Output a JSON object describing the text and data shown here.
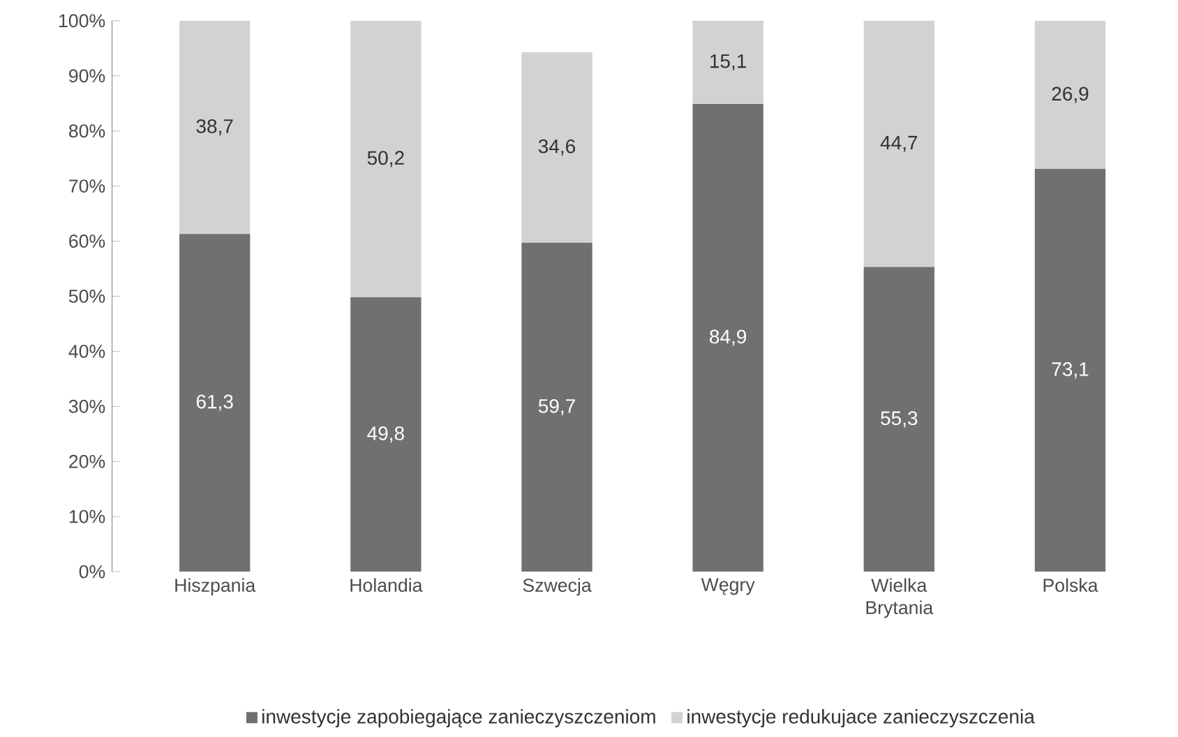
{
  "chart_data": {
    "type": "bar",
    "stacked": true,
    "categories": [
      "Hiszpania",
      "Holandia",
      "Szwecja",
      "Węgry",
      "Wielka Brytania",
      "Polska"
    ],
    "series": [
      {
        "name": "inwestycje zapobiegające zanieczyszczeniom",
        "color": "#707070",
        "values": [
          61.3,
          49.8,
          59.7,
          84.9,
          55.3,
          73.1
        ],
        "value_labels": [
          "61,3",
          "49,8",
          "59,7",
          "84,9",
          "55,3",
          "73,1"
        ]
      },
      {
        "name": "inwestycje redukujace zanieczyszczenia",
        "color": "#d2d2d2",
        "values": [
          38.7,
          50.2,
          34.6,
          15.1,
          44.7,
          26.9
        ],
        "value_labels": [
          "38,7",
          "50,2",
          "34,6",
          "15,1",
          "44,7",
          "26,9"
        ]
      }
    ],
    "ylim": [
      0,
      100
    ],
    "yticks": [
      {
        "value": 0,
        "label": "0%"
      },
      {
        "value": 10,
        "label": "10%"
      },
      {
        "value": 20,
        "label": "20%"
      },
      {
        "value": 30,
        "label": "30%"
      },
      {
        "value": 40,
        "label": "40%"
      },
      {
        "value": 50,
        "label": "50%"
      },
      {
        "value": 60,
        "label": "60%"
      },
      {
        "value": 70,
        "label": "70%"
      },
      {
        "value": 80,
        "label": "80%"
      },
      {
        "value": 90,
        "label": "90%"
      },
      {
        "value": 100,
        "label": "100%"
      }
    ],
    "legend": "bottom",
    "grid": false
  }
}
